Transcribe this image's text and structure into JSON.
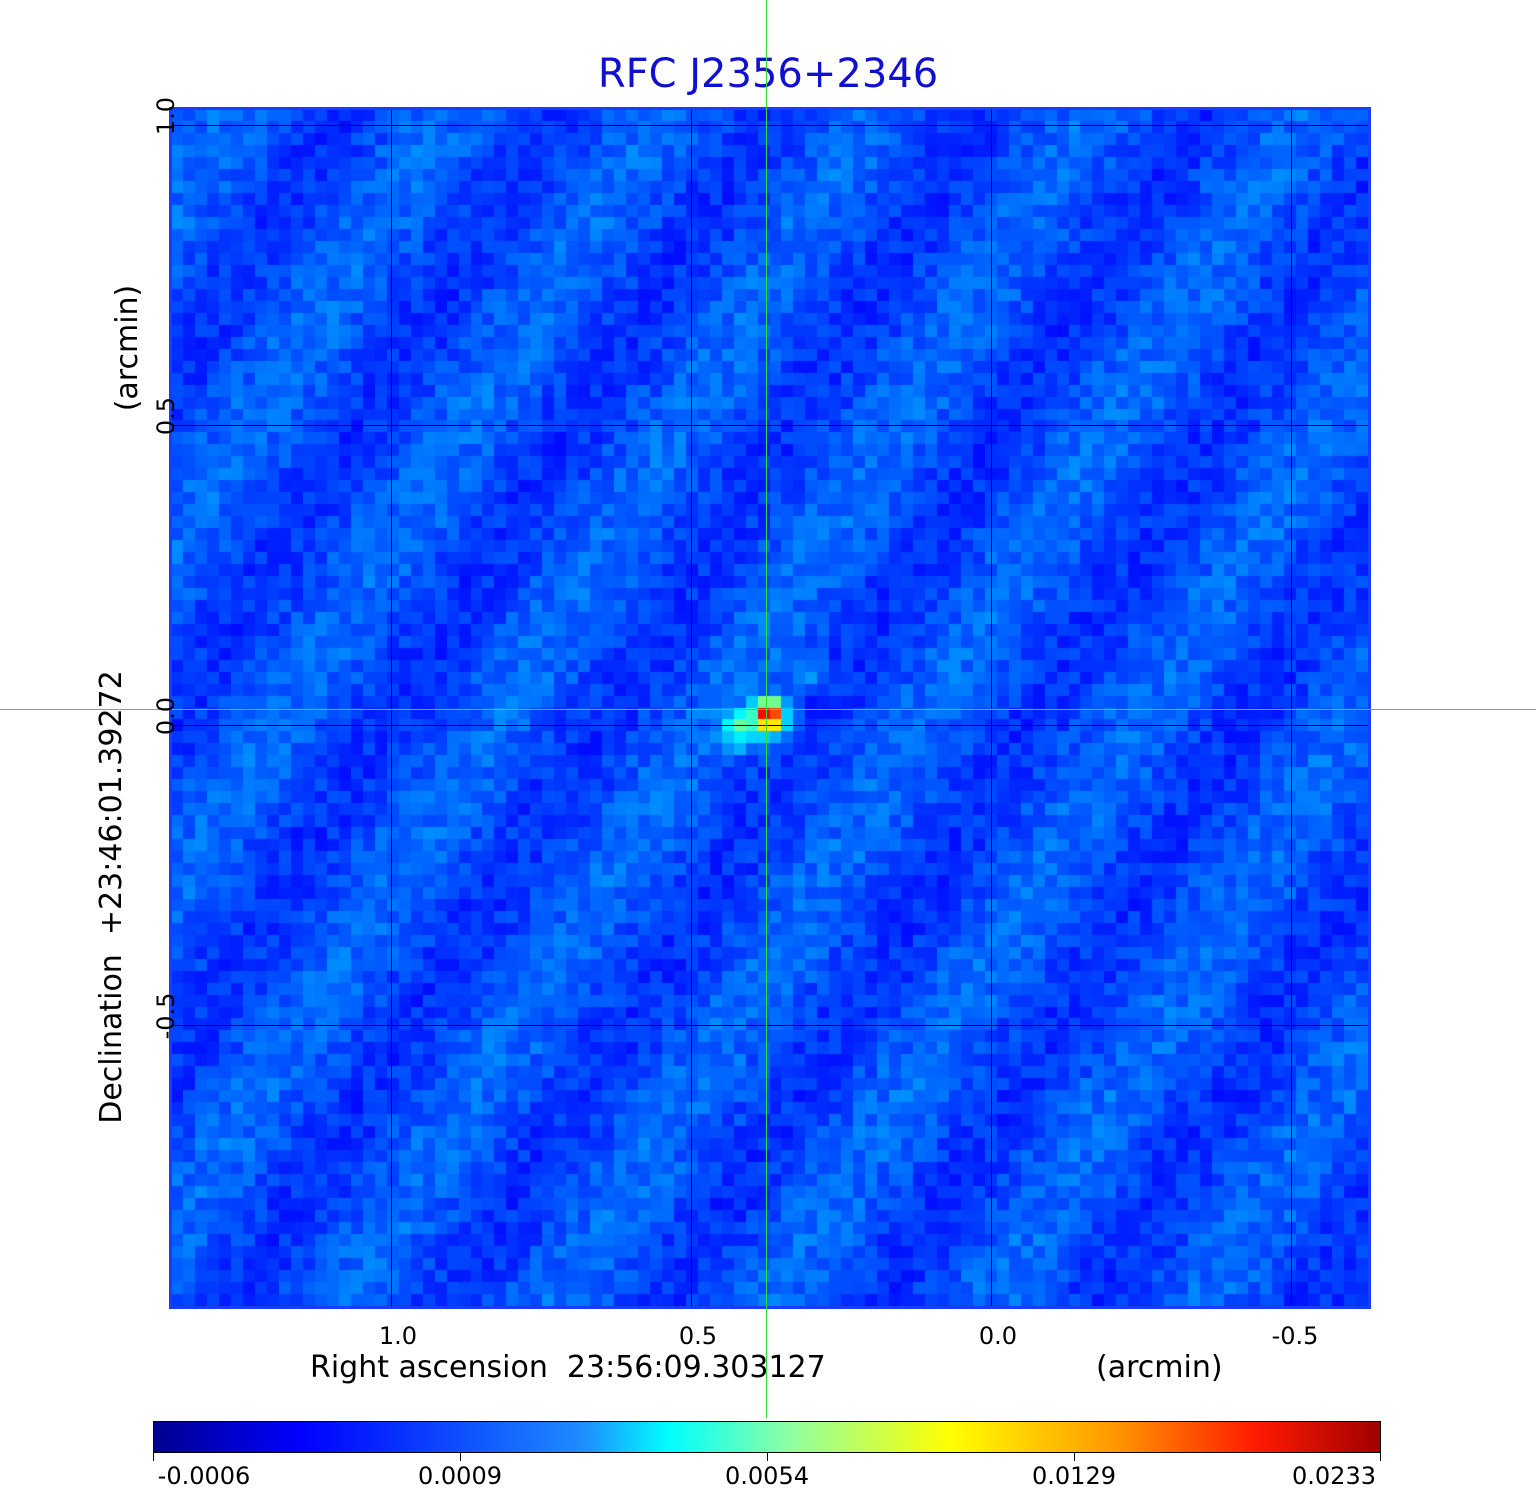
{
  "title": "RFC J2356+2346",
  "x_axis": {
    "label": "Right ascension  23:56:09.303127",
    "unit": "(arcmin)",
    "ticks": [
      "1.0",
      "0.5",
      "0.0",
      "-0.5"
    ]
  },
  "y_axis": {
    "label": "Declination  +23:46:01.39272",
    "unit": "(arcmin)",
    "ticks": [
      "1.0",
      "0.5",
      "0.0",
      "-0.5"
    ]
  },
  "colorbar": {
    "colormap": "jet",
    "ticks": [
      "-0.0006",
      "0.0009",
      "0.0054",
      "0.0129",
      "0.0233"
    ]
  },
  "colors": {
    "title": "#1010d0",
    "crosshair": "#33dd33",
    "background_noise": "#1e5cf2",
    "source_peak": "#cc0000"
  }
}
